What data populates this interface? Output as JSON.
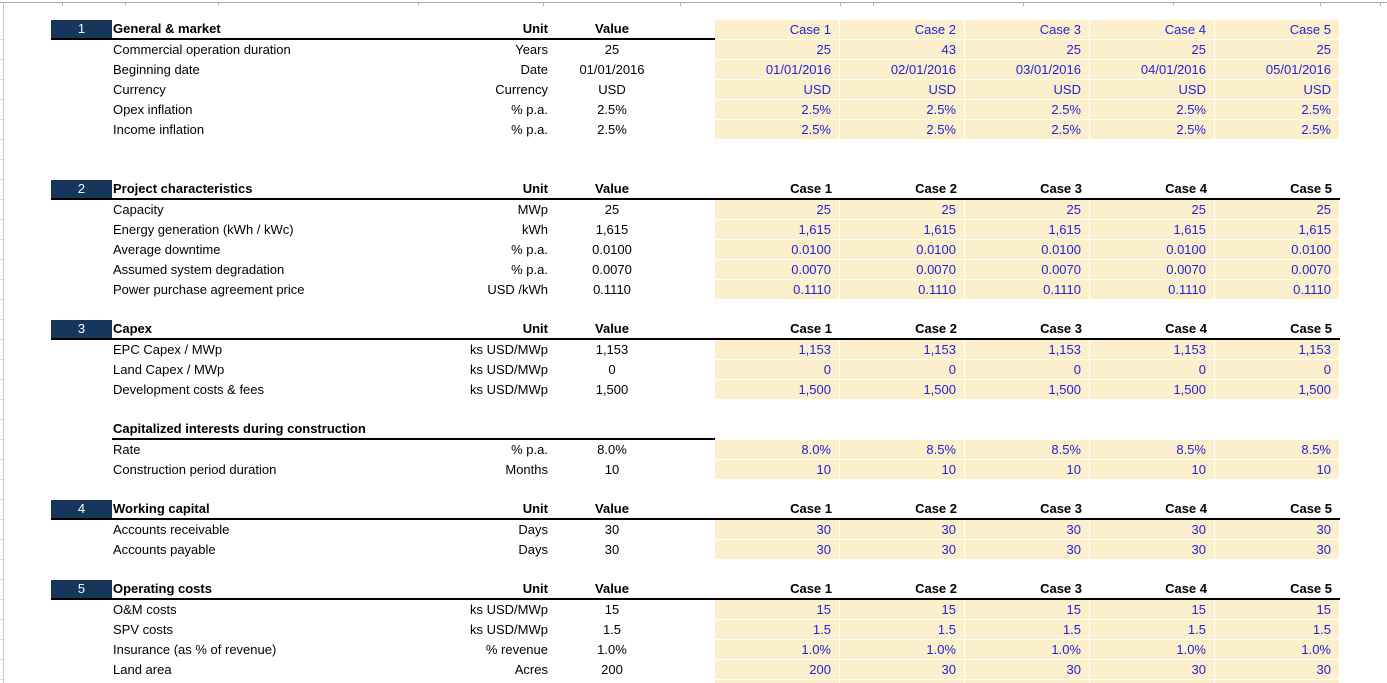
{
  "colors": {
    "section_badge": "#16365C",
    "input_cell_bg": "#FCEFCC",
    "input_text": "#2222D9",
    "grid_line": "#ADADAD"
  },
  "columns": {
    "unit_header": "Unit",
    "value_header": "Value",
    "case_headers": [
      "Case 1",
      "Case 2",
      "Case 3",
      "Case 4",
      "Case 5"
    ]
  },
  "sections": [
    {
      "number": "1",
      "title": "General & market",
      "case_header_style": "blue",
      "rows": [
        {
          "type": "data",
          "label": "Commercial operation duration",
          "unit": "Years",
          "value": "25",
          "cases": [
            "25",
            "43",
            "25",
            "25",
            "25"
          ]
        },
        {
          "type": "data",
          "label": "Beginning date",
          "unit": "Date",
          "value": "01/01/2016",
          "cases": [
            "01/01/2016",
            "02/01/2016",
            "03/01/2016",
            "04/01/2016",
            "05/01/2016"
          ]
        },
        {
          "type": "data",
          "label": "Currency",
          "unit": "Currency",
          "value": "USD",
          "cases": [
            "USD",
            "USD",
            "USD",
            "USD",
            "USD"
          ]
        },
        {
          "type": "data",
          "label": "Opex inflation",
          "unit": "% p.a.",
          "value": "2.5%",
          "cases": [
            "2.5%",
            "2.5%",
            "2.5%",
            "2.5%",
            "2.5%"
          ]
        },
        {
          "type": "data",
          "label": "Income inflation",
          "unit": "% p.a.",
          "value": "2.5%",
          "cases": [
            "2.5%",
            "2.5%",
            "2.5%",
            "2.5%",
            "2.5%"
          ]
        }
      ]
    },
    {
      "number": "2",
      "title": "Project characteristics",
      "case_header_style": "bold",
      "rows": [
        {
          "type": "data",
          "label": "Capacity",
          "unit": "MWp",
          "value": "25",
          "cases": [
            "25",
            "25",
            "25",
            "25",
            "25"
          ]
        },
        {
          "type": "data",
          "label": "Energy generation (kWh / kWc)",
          "unit": "kWh",
          "value": "1,615",
          "cases": [
            "1,615",
            "1,615",
            "1,615",
            "1,615",
            "1,615"
          ]
        },
        {
          "type": "data",
          "label": "Average downtime",
          "unit": "% p.a.",
          "value": "0.0100",
          "cases": [
            "0.0100",
            "0.0100",
            "0.0100",
            "0.0100",
            "0.0100"
          ]
        },
        {
          "type": "data",
          "label": "Assumed system degradation",
          "unit": "% p.a.",
          "value": "0.0070",
          "cases": [
            "0.0070",
            "0.0070",
            "0.0070",
            "0.0070",
            "0.0070"
          ]
        },
        {
          "type": "data",
          "label": "Power purchase agreement price",
          "unit": "USD /kWh",
          "value": "0.1110",
          "cases": [
            "0.1110",
            "0.1110",
            "0.1110",
            "0.1110",
            "0.1110"
          ]
        }
      ]
    },
    {
      "number": "3",
      "title": "Capex",
      "case_header_style": "bold",
      "rows": [
        {
          "type": "data",
          "label": "EPC Capex / MWp",
          "unit": "ks USD/MWp",
          "value": "1,153",
          "cases": [
            "1,153",
            "1,153",
            "1,153",
            "1,153",
            "1,153"
          ]
        },
        {
          "type": "data",
          "label": "Land Capex  / MWp",
          "unit": "ks USD/MWp",
          "value": "0",
          "cases": [
            "0",
            "0",
            "0",
            "0",
            "0"
          ]
        },
        {
          "type": "data",
          "label": "Development costs & fees",
          "unit": "ks USD/MWp",
          "value": "1,500",
          "cases": [
            "1,500",
            "1,500",
            "1,500",
            "1,500",
            "1,500"
          ]
        },
        {
          "type": "spacer"
        },
        {
          "type": "subheader",
          "label": "Capitalized interests during construction"
        },
        {
          "type": "data",
          "label": "Rate",
          "unit": "% p.a.",
          "value": "8.0%",
          "cases": [
            "8.0%",
            "8.5%",
            "8.5%",
            "8.5%",
            "8.5%"
          ]
        },
        {
          "type": "data",
          "label": "Construction period duration",
          "unit": "Months",
          "value": "10",
          "cases": [
            "10",
            "10",
            "10",
            "10",
            "10"
          ]
        }
      ]
    },
    {
      "number": "4",
      "title": "Working capital",
      "case_header_style": "bold",
      "rows": [
        {
          "type": "data",
          "label": "Accounts receivable",
          "unit": "Days",
          "value": "30",
          "cases": [
            "30",
            "30",
            "30",
            "30",
            "30"
          ]
        },
        {
          "type": "data",
          "label": "Accounts payable",
          "unit": "Days",
          "value": "30",
          "cases": [
            "30",
            "30",
            "30",
            "30",
            "30"
          ]
        }
      ]
    },
    {
      "number": "5",
      "title": "Operating costs",
      "case_header_style": "bold",
      "rows": [
        {
          "type": "data",
          "label": "O&M costs",
          "unit": "ks USD/MWp",
          "value": "15",
          "cases": [
            "15",
            "15",
            "15",
            "15",
            "15"
          ]
        },
        {
          "type": "data",
          "label": "SPV costs",
          "unit": "ks USD/MWp",
          "value": "1.5",
          "cases": [
            "1.5",
            "1.5",
            "1.5",
            "1.5",
            "1.5"
          ]
        },
        {
          "type": "data",
          "label": "Insurance (as % of revenue)",
          "unit": "% revenue",
          "value": "1.0%",
          "cases": [
            "1.0%",
            "1.0%",
            "1.0%",
            "1.0%",
            "1.0%"
          ]
        },
        {
          "type": "data",
          "label": "Land area",
          "unit": "Acres",
          "value": "200",
          "cases": [
            "200",
            "30",
            "30",
            "30",
            "30"
          ]
        }
      ]
    }
  ]
}
